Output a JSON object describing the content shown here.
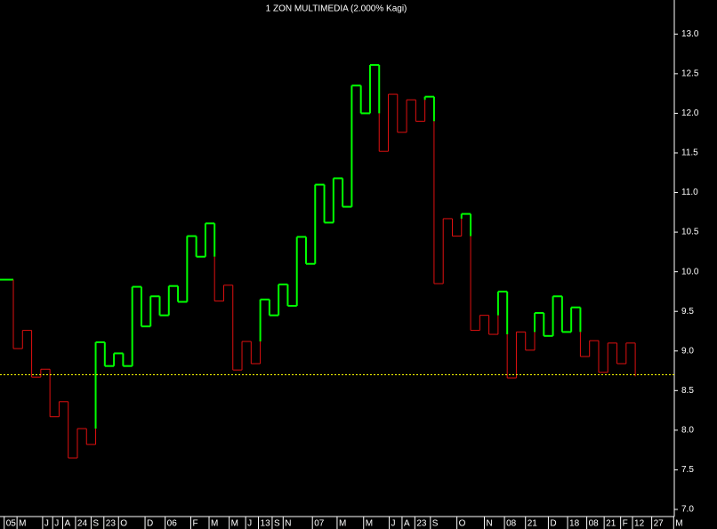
{
  "chart_data": {
    "type": "kagi",
    "title": "1 ZON MULTIMEDIA (2.000% Kagi)",
    "values": [
      9.9,
      9.03,
      9.26,
      8.67,
      8.77,
      8.17,
      8.36,
      7.65,
      8.02,
      7.82,
      9.11,
      8.81,
      8.97,
      8.81,
      9.81,
      9.31,
      9.69,
      9.45,
      9.82,
      9.62,
      10.45,
      10.19,
      10.61,
      9.63,
      9.83,
      8.76,
      9.12,
      8.84,
      9.65,
      9.45,
      9.84,
      9.57,
      10.44,
      10.1,
      11.1,
      10.62,
      11.18,
      10.82,
      12.35,
      12.0,
      12.61,
      11.52,
      12.24,
      11.76,
      12.17,
      11.9,
      12.21,
      9.85,
      10.67,
      10.45,
      10.73,
      9.26,
      9.45,
      9.21,
      9.75,
      8.66,
      9.24,
      9.01,
      9.48,
      9.19,
      9.69,
      9.24,
      9.55,
      8.93,
      9.13,
      8.73,
      9.1,
      8.84,
      9.1,
      8.68
    ],
    "yang_color": "#00ff00",
    "yin_color": "#e01010",
    "last_value": 8.7,
    "last_line_color": "#ffff00",
    "ylim": [
      6.91,
      13.43
    ],
    "yticks": [
      {
        "value": 7,
        "label": "7.0"
      },
      7.5,
      {
        "value": 8,
        "label": "8.0"
      },
      8.5,
      {
        "value": 9,
        "label": "9.0"
      },
      9.5,
      {
        "value": 10,
        "label": "10.0"
      },
      10.5,
      {
        "value": 11,
        "label": "11.0"
      },
      11.5,
      {
        "value": 12,
        "label": "12.0"
      },
      12.5,
      {
        "value": 13,
        "label": "13.0"
      }
    ],
    "xlim": [
      -0.46,
      73.27
    ],
    "xticks": [
      {
        "value": 0.0,
        "label": "05"
      },
      {
        "value": 1.4,
        "label": "M"
      },
      {
        "value": 4.2,
        "label": "J"
      },
      {
        "value": 5.3,
        "label": "J"
      },
      {
        "value": 6.4,
        "label": "A"
      },
      {
        "value": 7.8,
        "label": "24"
      },
      {
        "value": 9.5,
        "label": "S"
      },
      {
        "value": 10.9,
        "label": "23"
      },
      {
        "value": 12.5,
        "label": "O"
      },
      {
        "value": 15.4,
        "label": "D"
      },
      {
        "value": 17.6,
        "label": "06"
      },
      {
        "value": 20.4,
        "label": "F"
      },
      {
        "value": 22.4,
        "label": "M"
      },
      {
        "value": 24.6,
        "label": "M"
      },
      {
        "value": 26.4,
        "label": "J"
      },
      {
        "value": 27.8,
        "label": "13"
      },
      {
        "value": 29.3,
        "label": "S"
      },
      {
        "value": 30.5,
        "label": "N"
      },
      {
        "value": 33.7,
        "label": "07"
      },
      {
        "value": 36.4,
        "label": "M"
      },
      {
        "value": 39.3,
        "label": "M"
      },
      {
        "value": 42.1,
        "label": "J"
      },
      {
        "value": 43.5,
        "label": "A"
      },
      {
        "value": 44.9,
        "label": "23"
      },
      {
        "value": 46.6,
        "label": "S"
      },
      {
        "value": 49.5,
        "label": "O"
      },
      {
        "value": 52.5,
        "label": "N"
      },
      {
        "value": 54.7,
        "label": "08"
      },
      {
        "value": 57.0,
        "label": "21"
      },
      {
        "value": 59.5,
        "label": "D"
      },
      {
        "value": 61.6,
        "label": "18"
      },
      {
        "value": 63.7,
        "label": "08"
      },
      {
        "value": 65.6,
        "label": "21"
      },
      {
        "value": 67.4,
        "label": "F"
      },
      {
        "value": 68.7,
        "label": "12"
      },
      {
        "value": 70.8,
        "label": "27"
      },
      {
        "value": 73.2,
        "label": "M"
      }
    ]
  }
}
